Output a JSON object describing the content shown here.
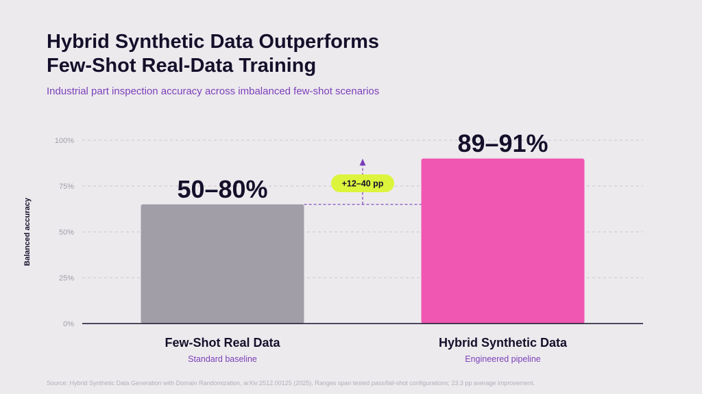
{
  "title_lines": [
    "Hybrid Synthetic Data Outperforms",
    "Few-Shot Real-Data Training"
  ],
  "subtitle": "Industrial part inspection accuracy across imbalanced few-shot scenarios",
  "source": "Source: Hybrid Synthetic Data Generation with Domain Randomization, arXiv:2512.00125 (2025). Ranges span tested pass/fail-shot configurations; 23.3 pp average improvement.",
  "colors": {
    "background": "#edeaee",
    "bar_baseline": "#a29ea8",
    "bar_hybrid": "#f057b2",
    "badge": "#dcf43c",
    "accent": "#7a3fb8",
    "text": "#14102a"
  },
  "chart_data": {
    "type": "bar",
    "title": "Hybrid Synthetic Data Outperforms Few-Shot Real-Data Training",
    "subtitle": "Industrial part inspection accuracy across imbalanced few-shot scenarios",
    "xlabel": "",
    "ylabel": "Balanced accuracy",
    "ylim": [
      0,
      100
    ],
    "y_ticks": [
      {
        "value": 0,
        "label": "0%"
      },
      {
        "value": 25,
        "label": "25%"
      },
      {
        "value": 50,
        "label": "50%"
      },
      {
        "value": 75,
        "label": "75%"
      },
      {
        "value": 100,
        "label": "100%"
      }
    ],
    "grid": true,
    "categories": [
      "Few-Shot Real Data",
      "Hybrid Synthetic Data"
    ],
    "category_subtitles": [
      "Standard baseline",
      "Engineered pipeline"
    ],
    "values": [
      65,
      90
    ],
    "value_labels": [
      "50–80%",
      "89–91%"
    ],
    "bar_colors": [
      "#a29ea8",
      "#f057b2"
    ],
    "annotation": {
      "text": "+12–40 pp",
      "from_value": 65,
      "direction": "up"
    }
  }
}
